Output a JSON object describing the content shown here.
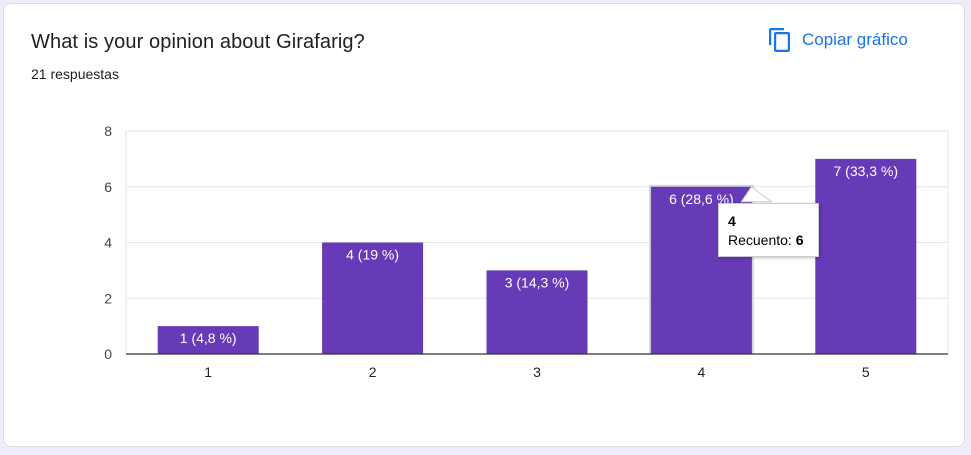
{
  "card": {
    "title": "What is your opinion about Girafarig?",
    "response_count": "21 respuestas",
    "copy_button_label": "Copiar gráfico",
    "copy_icon": "copy-icon"
  },
  "colors": {
    "bar": "#673ab7",
    "accent": "#1a73e8",
    "page_background": "#f0ebf8"
  },
  "chart_data": {
    "type": "bar",
    "categories": [
      "1",
      "2",
      "3",
      "4",
      "5"
    ],
    "values": [
      1,
      4,
      3,
      6,
      7
    ],
    "data_labels": [
      "1 (4,8 %)",
      "4 (19 %)",
      "3 (14,3 %)",
      "6 (28,6 %)",
      "7 (33,3 %)"
    ],
    "y_ticks": [
      "0",
      "2",
      "4",
      "6",
      "8"
    ],
    "ylim": [
      0,
      8
    ],
    "grid": true,
    "highlighted_category": "4"
  },
  "tooltip": {
    "title": "4",
    "label": "Recuento:",
    "value": "6"
  }
}
